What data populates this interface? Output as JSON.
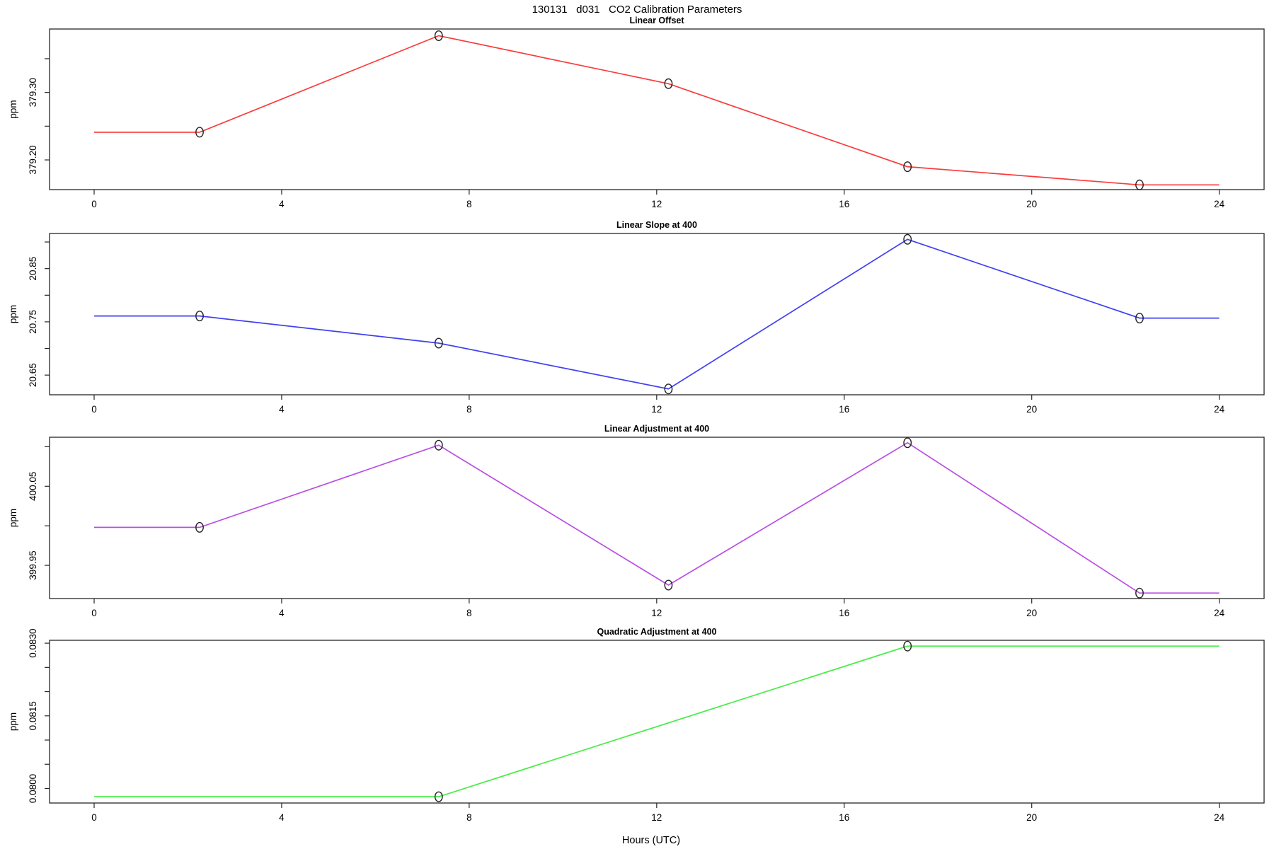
{
  "figure": {
    "title": "130131   d031   CO2 Calibration Parameters",
    "xlabel": "Hours (UTC)"
  },
  "x_axis": {
    "ticks": [
      0,
      4,
      8,
      12,
      16,
      20,
      24
    ],
    "tick_labels": [
      "0",
      "4",
      "8",
      "12",
      "16",
      "20",
      "24"
    ],
    "range_hours": [
      0,
      24
    ],
    "xlim": [
      -0.96,
      24.96
    ]
  },
  "chart_data": [
    {
      "type": "line",
      "title": "Linear Offset",
      "ylabel": "ppm",
      "color": "#fa3c3c",
      "marker": "open-circle",
      "x": [
        2.25,
        7.35,
        12.25,
        17.35,
        22.3
      ],
      "y": [
        379.241,
        379.384,
        379.313,
        379.19,
        379.163
      ],
      "line_x_extent": [
        0,
        24
      ],
      "ylim": [
        379.156,
        379.394
      ],
      "yticks": [
        379.2,
        379.25,
        379.3,
        379.35
      ],
      "ytick_labels": [
        "379.20",
        "",
        "379.30",
        ""
      ]
    },
    {
      "type": "line",
      "title": "Linear Slope at 400",
      "ylabel": "ppm",
      "color": "#4040f0",
      "marker": "open-circle",
      "x": [
        2.25,
        7.35,
        12.25,
        17.35,
        22.3
      ],
      "y": [
        20.761,
        20.71,
        20.624,
        20.905,
        20.757
      ],
      "line_x_extent": [
        0,
        24
      ],
      "ylim": [
        20.613,
        20.916
      ],
      "yticks": [
        20.65,
        20.7,
        20.75,
        20.8,
        20.85,
        20.9
      ],
      "ytick_labels": [
        "20.65",
        "",
        "20.75",
        "",
        "20.85",
        ""
      ]
    },
    {
      "type": "line",
      "title": "Linear Adjustment at 400",
      "ylabel": "ppm",
      "color": "#b94fe3",
      "marker": "open-circle",
      "x": [
        2.25,
        7.35,
        12.25,
        17.35,
        22.3
      ],
      "y": [
        399.998,
        400.102,
        399.925,
        400.105,
        399.915
      ],
      "line_x_extent": [
        0,
        24
      ],
      "ylim": [
        399.908,
        400.112
      ],
      "yticks": [
        399.95,
        400.0,
        400.05,
        400.1
      ],
      "ytick_labels": [
        "399.95",
        "",
        "400.05",
        ""
      ]
    },
    {
      "type": "line",
      "title": "Quadratic Adjustment at 400",
      "ylabel": "ppm",
      "color": "#47ec47",
      "marker": "open-circle",
      "x": [
        7.35,
        17.35
      ],
      "y": [
        0.07983,
        0.08294
      ],
      "line_x_extent": [
        0,
        24
      ],
      "ylim": [
        0.0797,
        0.08306
      ],
      "yticks": [
        0.08,
        0.0805,
        0.081,
        0.0815,
        0.082,
        0.0825,
        0.083
      ],
      "ytick_labels": [
        "0.0800",
        "",
        "",
        "0.0815",
        "",
        "",
        "0.0830"
      ]
    }
  ]
}
